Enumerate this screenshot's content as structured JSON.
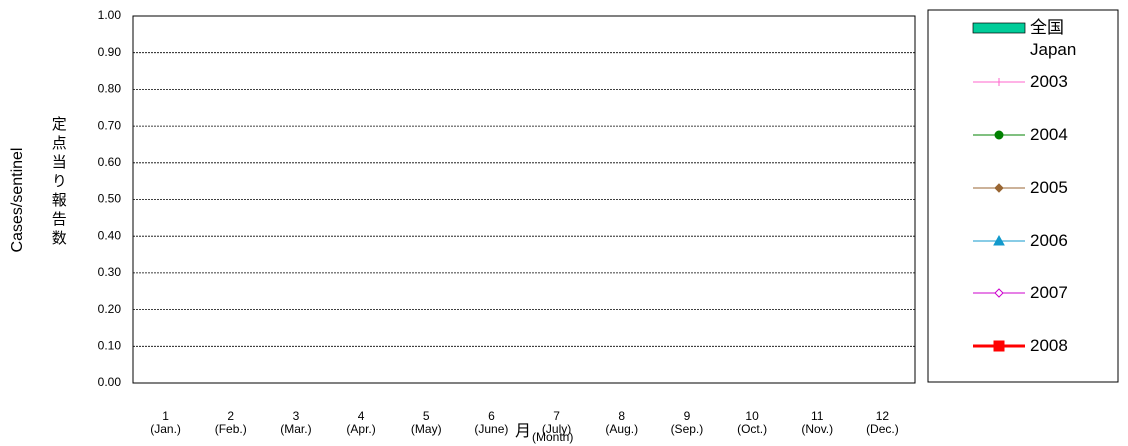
{
  "chart_data": {
    "type": "line",
    "y_label": "Cases/sentinel",
    "y_label_ja": "定点当り報告数",
    "x_label_ja": "月",
    "x_label": "(Month)",
    "categories": [
      "1\n(Jan.)",
      "2\n(Feb.)",
      "3\n(Mar.)",
      "4\n(Apr.)",
      "5\n(May)",
      "6\n(June)",
      "7\n(July)",
      "8\n(Aug.)",
      "9\n(Sep.)",
      "10\n(Oct.)",
      "11\n(Nov.)",
      "12\n(Dec.)"
    ],
    "ylim": [
      0,
      1
    ],
    "yticks": [
      {
        "value": 0,
        "label": "0.00"
      },
      {
        "value": 0.1,
        "label": "0.10"
      },
      {
        "value": 0.2,
        "label": "0.20"
      },
      {
        "value": 0.3,
        "label": "0.30"
      },
      {
        "value": 0.4,
        "label": "0.40"
      },
      {
        "value": 0.5,
        "label": "0.50"
      },
      {
        "value": 0.6,
        "label": "0.60"
      },
      {
        "value": 0.7,
        "label": "0.70"
      },
      {
        "value": 0.8,
        "label": "0.80"
      },
      {
        "value": 0.9,
        "label": "0.90"
      },
      {
        "value": 1,
        "label": "1.00"
      }
    ],
    "grid": true,
    "legend": "right",
    "series": [
      {
        "name": "全国\nJapan",
        "type": "bar",
        "color": "#00cc99",
        "values": [
          null,
          null,
          null,
          null,
          null,
          null,
          null,
          null,
          null,
          null,
          null,
          null
        ]
      },
      {
        "name": "2003",
        "marker": "plus",
        "color": "#ff66cc",
        "values": [
          null,
          null,
          null,
          null,
          null,
          null,
          null,
          null,
          null,
          null,
          null,
          null
        ]
      },
      {
        "name": "2004",
        "marker": "circle",
        "color": "#008000",
        "values": [
          null,
          null,
          null,
          null,
          null,
          null,
          null,
          null,
          null,
          null,
          null,
          null
        ]
      },
      {
        "name": "2005",
        "marker": "diamond",
        "color": "#996633",
        "values": [
          null,
          null,
          null,
          null,
          null,
          null,
          null,
          null,
          null,
          null,
          null,
          null
        ]
      },
      {
        "name": "2006",
        "marker": "triangle",
        "color": "#1199cc",
        "values": [
          null,
          null,
          null,
          null,
          null,
          null,
          null,
          null,
          null,
          null,
          null,
          null
        ]
      },
      {
        "name": "2007",
        "marker": "open-diamond",
        "color": "#cc00cc",
        "values": [
          null,
          null,
          null,
          null,
          null,
          null,
          null,
          null,
          null,
          null,
          null,
          null
        ]
      },
      {
        "name": "2008",
        "marker": "square",
        "color": "#ff0000",
        "values": [
          null,
          null,
          null,
          null,
          null,
          null,
          null,
          null,
          null,
          null,
          null,
          null
        ]
      }
    ]
  }
}
